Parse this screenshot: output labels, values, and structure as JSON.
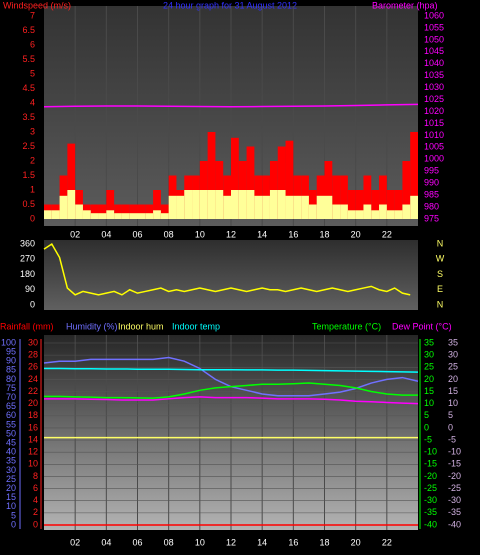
{
  "chart_data": [
    {
      "type": "combo",
      "title": "24 hour graph for 31 August 2012",
      "xlim": [
        0,
        24
      ],
      "xticks": [
        {
          "value": 2,
          "label": "02"
        },
        {
          "value": 4,
          "label": "04"
        },
        {
          "value": 6,
          "label": "06"
        },
        {
          "value": 8,
          "label": "08"
        },
        {
          "value": 10,
          "label": "10"
        },
        {
          "value": 12,
          "label": "12"
        },
        {
          "value": 14,
          "label": "14"
        },
        {
          "value": 16,
          "label": "16"
        },
        {
          "value": 18,
          "label": "18"
        },
        {
          "value": 20,
          "label": "20"
        },
        {
          "value": 22,
          "label": "22"
        }
      ],
      "x": [
        0,
        0.5,
        1,
        1.5,
        2,
        2.5,
        3,
        3.5,
        4,
        4.5,
        5,
        5.5,
        6,
        6.5,
        7,
        7.5,
        8,
        8.5,
        9,
        9.5,
        10,
        10.5,
        11,
        11.5,
        12,
        12.5,
        13,
        13.5,
        14,
        14.5,
        15,
        15.5,
        16,
        16.5,
        17,
        17.5,
        18,
        18.5,
        19,
        19.5,
        20,
        20.5,
        21,
        21.5,
        22,
        22.5,
        23,
        23.5
      ],
      "axes": [
        {
          "title": "Windspeed (m/s)",
          "color": "#ff2020",
          "lim": [
            0,
            7
          ],
          "ticks": [
            0,
            0.5,
            1,
            1.5,
            2,
            2.5,
            3,
            3.5,
            4,
            4.5,
            5,
            5.5,
            6,
            6.5,
            7
          ]
        },
        {
          "title": "Barometer (hpa)",
          "color": "#ff00ff",
          "lim": [
            975,
            1060
          ],
          "ticks": [
            975,
            980,
            985,
            990,
            995,
            1000,
            1005,
            1010,
            1015,
            1020,
            1025,
            1030,
            1035,
            1040,
            1045,
            1050,
            1055,
            1060
          ]
        }
      ],
      "series": [
        {
          "type": "bar",
          "color": "#ff0000",
          "axis": 0,
          "values": [
            0.5,
            0.5,
            1.5,
            2.6,
            1.0,
            0.5,
            0.5,
            0.5,
            1.0,
            0.5,
            0.5,
            0.5,
            0.5,
            0.5,
            1.0,
            0.5,
            1.5,
            1.0,
            1.5,
            1.5,
            2.0,
            3.0,
            2.0,
            1.5,
            2.8,
            2.0,
            2.5,
            1.5,
            1.5,
            2.0,
            2.5,
            2.7,
            1.5,
            1.5,
            1.0,
            1.5,
            2.0,
            1.5,
            1.5,
            1.0,
            1.0,
            1.5,
            1.0,
            1.5,
            1.0,
            1.0,
            2.0,
            3.0
          ]
        },
        {
          "type": "bar",
          "color": "#ffff99",
          "axis": 0,
          "values": [
            0.3,
            0.3,
            0.8,
            1.0,
            0.5,
            0.3,
            0.2,
            0.2,
            0.3,
            0.2,
            0.2,
            0.2,
            0.2,
            0.2,
            0.3,
            0.2,
            0.8,
            0.8,
            1.0,
            1.0,
            1.0,
            1.0,
            1.0,
            0.8,
            1.0,
            1.0,
            1.0,
            0.8,
            0.8,
            1.0,
            1.0,
            0.8,
            0.8,
            0.8,
            0.5,
            0.8,
            0.8,
            0.5,
            0.5,
            0.3,
            0.3,
            0.5,
            0.3,
            0.5,
            0.3,
            0.3,
            0.5,
            0.8
          ]
        },
        {
          "type": "line",
          "color": "#ff00ff",
          "axis": 1,
          "x": [
            0,
            2,
            4,
            6,
            8,
            10,
            12,
            14,
            16,
            18,
            20,
            22,
            24
          ],
          "values": [
            1022,
            1022.2,
            1022.3,
            1022.3,
            1022.2,
            1022.1,
            1022,
            1022.1,
            1022.2,
            1022.3,
            1022.5,
            1022.8,
            1023
          ]
        }
      ]
    },
    {
      "type": "line",
      "xlim": [
        0,
        24
      ],
      "x": [
        0,
        0.5,
        1,
        1.5,
        2,
        2.5,
        3,
        3.5,
        4,
        4.5,
        5,
        5.5,
        6,
        6.5,
        7,
        7.5,
        8,
        8.5,
        9,
        9.5,
        10,
        10.5,
        11,
        11.5,
        12,
        12.5,
        13,
        13.5,
        14,
        14.5,
        15,
        15.5,
        16,
        16.5,
        17,
        17.5,
        18,
        18.5,
        19,
        19.5,
        20,
        20.5,
        21,
        21.5,
        22,
        22.5,
        23,
        23.5
      ],
      "axes": [
        {
          "color": "#ffffff",
          "lim": [
            0,
            360
          ],
          "ticks": [
            0,
            90,
            180,
            270,
            360
          ]
        },
        {
          "color": "#ffff66",
          "lim": [
            0,
            360
          ],
          "ticks": [
            {
              "value": 0,
              "label": "N"
            },
            {
              "value": 90,
              "label": "E"
            },
            {
              "value": 180,
              "label": "S"
            },
            {
              "value": 270,
              "label": "W"
            },
            {
              "value": 360,
              "label": "N"
            }
          ]
        }
      ],
      "series": [
        {
          "type": "line",
          "color": "#ffff00",
          "axis": 0,
          "values": [
            330,
            360,
            280,
            100,
            60,
            80,
            70,
            60,
            70,
            80,
            60,
            90,
            70,
            80,
            90,
            100,
            80,
            90,
            80,
            90,
            100,
            90,
            80,
            90,
            100,
            90,
            80,
            90,
            100,
            90,
            90,
            80,
            90,
            100,
            90,
            80,
            90,
            100,
            90,
            80,
            90,
            100,
            110,
            90,
            80,
            100,
            70,
            60
          ]
        }
      ]
    },
    {
      "type": "line",
      "xlim": [
        0,
        24
      ],
      "grid": true,
      "grid_axis": 1,
      "xticks": [
        {
          "value": 2,
          "label": "02"
        },
        {
          "value": 4,
          "label": "04"
        },
        {
          "value": 6,
          "label": "06"
        },
        {
          "value": 8,
          "label": "08"
        },
        {
          "value": 10,
          "label": "10"
        },
        {
          "value": 12,
          "label": "12"
        },
        {
          "value": 14,
          "label": "14"
        },
        {
          "value": 16,
          "label": "16"
        },
        {
          "value": 18,
          "label": "18"
        },
        {
          "value": 20,
          "label": "20"
        },
        {
          "value": 22,
          "label": "22"
        }
      ],
      "x": [
        0,
        1,
        2,
        3,
        4,
        5,
        6,
        7,
        8,
        9,
        10,
        11,
        12,
        13,
        14,
        15,
        16,
        17,
        18,
        19,
        20,
        21,
        22,
        23,
        24
      ],
      "axes": [
        {
          "color": "#7070ff",
          "lim": [
            0,
            100
          ],
          "ticks": [
            0,
            5,
            10,
            15,
            20,
            25,
            30,
            35,
            40,
            45,
            50,
            55,
            60,
            65,
            70,
            75,
            80,
            85,
            90,
            95,
            100
          ]
        },
        {
          "color": "#ff2020",
          "lim": [
            0,
            30
          ],
          "ticks": [
            0,
            2,
            4,
            6,
            8,
            10,
            12,
            14,
            16,
            18,
            20,
            22,
            24,
            26,
            28,
            30
          ]
        },
        {
          "color": "#00ff00",
          "lim": [
            -40,
            35
          ],
          "ticks": [
            -40,
            -35,
            -30,
            -25,
            -20,
            -15,
            -10,
            -5,
            0,
            5,
            10,
            15,
            20,
            25,
            30,
            35
          ]
        },
        {
          "color": "#d0b0e0",
          "lim": [
            -40,
            35
          ],
          "ticks": [
            -40,
            -35,
            -30,
            -25,
            -20,
            -15,
            -10,
            -5,
            0,
            5,
            10,
            15,
            20,
            25,
            30,
            35
          ]
        }
      ],
      "series": [
        {
          "type": "line",
          "name": "Rainfall (mm)",
          "color": "#ff0000",
          "axis": 1,
          "values": [
            0,
            0,
            0,
            0,
            0,
            0,
            0,
            0,
            0,
            0,
            0,
            0,
            0,
            0,
            0,
            0,
            0,
            0,
            0,
            0,
            0,
            0,
            0,
            0,
            0
          ]
        },
        {
          "type": "line",
          "name": "Humidity (%)",
          "color": "#7070ff",
          "axis": 0,
          "values": [
            89,
            90,
            90,
            91,
            91,
            91,
            91,
            91,
            92,
            90,
            86,
            80,
            76,
            74,
            72,
            71,
            71,
            71,
            72,
            73,
            75,
            78,
            80,
            81,
            79
          ]
        },
        {
          "type": "line",
          "name": "Indoor hum",
          "color": "#ffff66",
          "axis": 0,
          "values": [
            48,
            48,
            48,
            48,
            48,
            48,
            48,
            48,
            48,
            48,
            48,
            48,
            48,
            48,
            48,
            48,
            48,
            48,
            48,
            48,
            48,
            48,
            48,
            48,
            48
          ]
        },
        {
          "type": "line",
          "name": "Indoor temp",
          "color": "#00ffff",
          "axis": 2,
          "values": [
            24.5,
            24.5,
            24.4,
            24.4,
            24.3,
            24.3,
            24.2,
            24.2,
            24.2,
            24.1,
            24,
            24,
            24,
            23.9,
            23.9,
            23.8,
            23.8,
            23.7,
            23.6,
            23.5,
            23.4,
            23.3,
            23.2,
            23.1,
            23
          ]
        },
        {
          "type": "line",
          "name": "Temperature (°C)",
          "color": "#00ff00",
          "axis": 2,
          "values": [
            13,
            13,
            12.8,
            12.7,
            12.5,
            12.5,
            12.4,
            12.3,
            12.8,
            14,
            15.5,
            16.5,
            17,
            17.5,
            18,
            18,
            18.2,
            18.5,
            18,
            17.5,
            16.5,
            15,
            14,
            13.5,
            13.5
          ]
        },
        {
          "type": "line",
          "name": "Dew Point (°C)",
          "color": "#ff00ff",
          "axis": 3,
          "values": [
            12,
            12,
            12,
            11.8,
            11.7,
            11.5,
            11.5,
            11.5,
            12,
            12.5,
            12.8,
            12.5,
            12.5,
            12.5,
            12.3,
            12,
            12,
            12,
            11.8,
            11.5,
            11,
            10.8,
            10.5,
            10.2,
            10
          ]
        }
      ]
    }
  ]
}
